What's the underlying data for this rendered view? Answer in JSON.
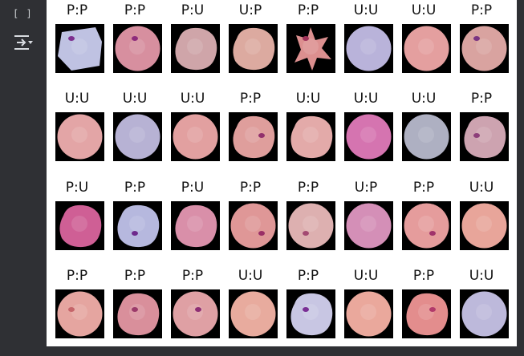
{
  "cell": {
    "run_indicator": "[ ]"
  },
  "icons": {
    "output_toggle": "output-settings-icon"
  },
  "grid": {
    "rows": [
      [
        {
          "label": "P:P",
          "color": "#bfc2e2",
          "shape": "square",
          "infected": true,
          "dot": "#7d2f8f"
        },
        {
          "label": "P:P",
          "color": "#d78f9f",
          "shape": "round",
          "infected": true,
          "dot": "#8e2b7c"
        },
        {
          "label": "P:U",
          "color": "#cfa5a9",
          "shape": "ragged",
          "infected": false,
          "dot": ""
        },
        {
          "label": "U:P",
          "color": "#dcaaa0",
          "shape": "ragged",
          "infected": false,
          "dot": ""
        },
        {
          "label": "P:P",
          "color": "#dc8f8f",
          "shape": "star",
          "infected": true,
          "dot": "#a0335a"
        },
        {
          "label": "U:U",
          "color": "#b9b3da",
          "shape": "round",
          "infected": false,
          "dot": ""
        },
        {
          "label": "U:U",
          "color": "#e49f9f",
          "shape": "round",
          "infected": false,
          "dot": ""
        },
        {
          "label": "P:P",
          "color": "#d9a3a0",
          "shape": "round",
          "infected": true,
          "dot": "#7a3382"
        }
      ],
      [
        {
          "label": "U:U",
          "color": "#e3a5a6",
          "shape": "round",
          "infected": false,
          "dot": ""
        },
        {
          "label": "U:U",
          "color": "#b7b2d4",
          "shape": "round",
          "infected": false,
          "dot": ""
        },
        {
          "label": "U:U",
          "color": "#e2a0a0",
          "shape": "round",
          "infected": false,
          "dot": ""
        },
        {
          "label": "P:P",
          "color": "#df9e9c",
          "shape": "ragged",
          "infected": true,
          "dot": "#92306c"
        },
        {
          "label": "U:U",
          "color": "#e3aaa9",
          "shape": "ragged",
          "infected": false,
          "dot": ""
        },
        {
          "label": "U:U",
          "color": "#d574b0",
          "shape": "round",
          "infected": false,
          "dot": ""
        },
        {
          "label": "U:U",
          "color": "#aeb0c2",
          "shape": "round",
          "infected": false,
          "dot": ""
        },
        {
          "label": "P:P",
          "color": "#cda3b0",
          "shape": "ragged",
          "infected": true,
          "dot": "#8d3f7a"
        }
      ],
      [
        {
          "label": "P:U",
          "color": "#cf5f95",
          "shape": "ragged",
          "infected": false,
          "dot": ""
        },
        {
          "label": "P:P",
          "color": "#b6b8de",
          "shape": "ragged",
          "infected": true,
          "dot": "#6e2a8c"
        },
        {
          "label": "P:U",
          "color": "#d98fa9",
          "shape": "ragged",
          "infected": false,
          "dot": ""
        },
        {
          "label": "P:P",
          "color": "#df9797",
          "shape": "round",
          "infected": true,
          "dot": "#9a2f66"
        },
        {
          "label": "P:P",
          "color": "#ddb0b0",
          "shape": "round",
          "infected": true,
          "dot": "#a34a72"
        },
        {
          "label": "U:P",
          "color": "#d48fb7",
          "shape": "round",
          "infected": false,
          "dot": ""
        },
        {
          "label": "P:P",
          "color": "#e59c9c",
          "shape": "round",
          "infected": true,
          "dot": "#a0336b"
        },
        {
          "label": "U:U",
          "color": "#e8a59a",
          "shape": "round",
          "infected": false,
          "dot": ""
        }
      ],
      [
        {
          "label": "P:P",
          "color": "#e5a5a0",
          "shape": "round",
          "infected": true,
          "dot": "#c5656a"
        },
        {
          "label": "P:P",
          "color": "#d98f9b",
          "shape": "ragged",
          "infected": true,
          "dot": "#9b3a6a"
        },
        {
          "label": "P:P",
          "color": "#dfa0a4",
          "shape": "round",
          "infected": true,
          "dot": "#8e2e74"
        },
        {
          "label": "U:U",
          "color": "#e8ab9e",
          "shape": "round",
          "infected": false,
          "dot": ""
        },
        {
          "label": "P:P",
          "color": "#c8c6e3",
          "shape": "ragged",
          "infected": true,
          "dot": "#7a2f95"
        },
        {
          "label": "U:U",
          "color": "#eaa89c",
          "shape": "round",
          "infected": false,
          "dot": ""
        },
        {
          "label": "P:P",
          "color": "#e38d8d",
          "shape": "ragged",
          "infected": true,
          "dot": "#b23a6a"
        },
        {
          "label": "U:U",
          "color": "#bdb9db",
          "shape": "round",
          "infected": false,
          "dot": ""
        }
      ]
    ]
  }
}
